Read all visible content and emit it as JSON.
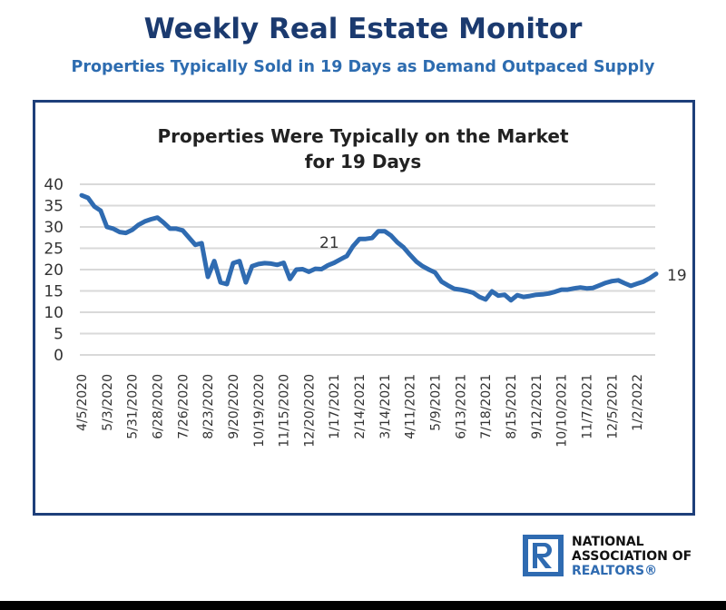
{
  "header": {
    "title": "Weekly Real Estate Monitor",
    "subtitle": "Properties Typically Sold in 19 Days as Demand Outpaced Supply"
  },
  "chart_data": {
    "type": "line",
    "title": "Properties Were Typically on the Market for 19 Days",
    "title_lines": [
      "Properties Were Typically on the Market",
      "for 19 Days"
    ],
    "ylim": [
      0,
      40
    ],
    "yticks": [
      0,
      5,
      10,
      15,
      20,
      25,
      30,
      35,
      40
    ],
    "grid": "horizontal",
    "x_tick_labels": [
      "4/5/2020",
      "5/3/2020",
      "5/31/2020",
      "6/28/2020",
      "7/26/2020",
      "8/23/2020",
      "9/20/2020",
      "10/19/2020",
      "11/15/2020",
      "12/20/2020",
      "1/17/2021",
      "2/14/2021",
      "3/14/2021",
      "4/11/2021",
      "5/9/2021",
      "6/13/2021",
      "7/18/2021",
      "8/15/2021",
      "9/12/2021",
      "10/10/2021",
      "11/7/2021",
      "12/5/2021",
      "1/2/2022"
    ],
    "color": "#2f6bb1",
    "values": [
      37.4,
      36.8,
      34.8,
      33.8,
      30,
      29.6,
      28.8,
      28.6,
      29.3,
      30.5,
      31.3,
      31.8,
      32.2,
      31,
      29.6,
      29.6,
      29.2,
      27.5,
      25.8,
      26.2,
      18.3,
      22,
      17,
      16.6,
      21.5,
      22,
      17,
      20.8,
      21.3,
      21.5,
      21.4,
      21.1,
      21.6,
      17.8,
      20,
      20.1,
      19.5,
      20.2,
      20.1,
      21,
      21.6,
      22.4,
      23.2,
      25.5,
      27.2,
      27.2,
      27.4,
      29,
      29,
      28,
      26.4,
      25.2,
      23.5,
      21.9,
      20.8,
      20,
      19.3,
      17.2,
      16.3,
      15.5,
      15.3,
      15,
      14.6,
      13.6,
      13,
      14.9,
      13.9,
      14.1,
      12.8,
      14,
      13.6,
      13.8,
      14.1,
      14.2,
      14.4,
      14.8,
      15.3,
      15.3,
      15.6,
      15.8,
      15.6,
      15.7,
      16.3,
      16.9,
      17.3,
      17.5,
      16.8,
      16.2,
      16.7,
      17.2,
      18,
      19
    ],
    "annotations": [
      {
        "text": "21",
        "value": 21
      },
      {
        "text": "19",
        "value": 19
      }
    ]
  },
  "logo": {
    "line1": "NATIONAL",
    "line2": "ASSOCIATION OF",
    "line3": "REALTORS®"
  }
}
